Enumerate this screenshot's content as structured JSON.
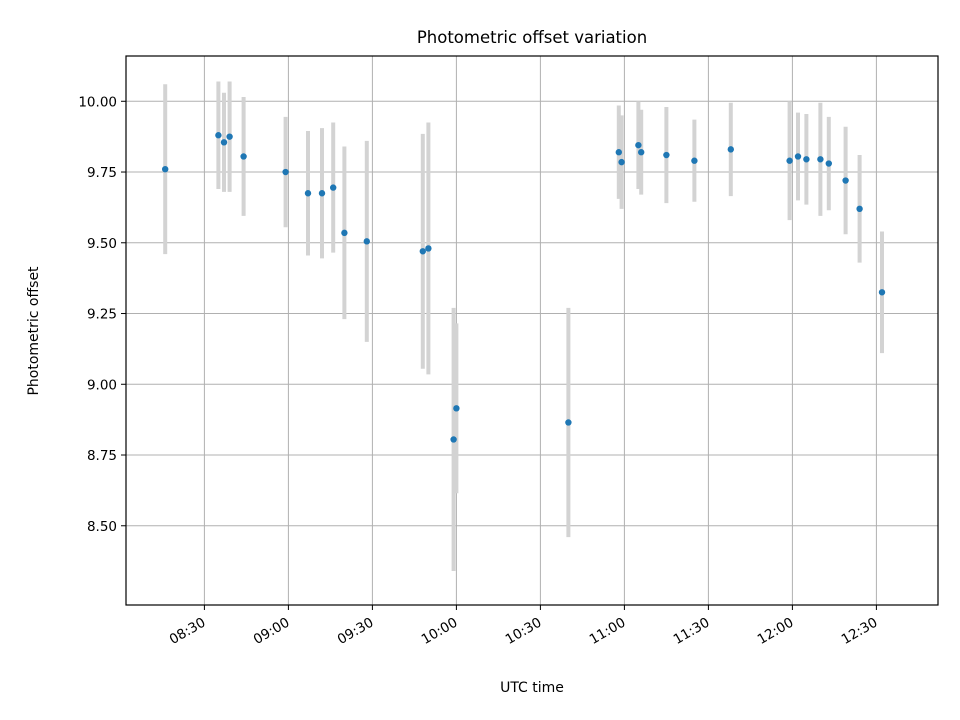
{
  "chart_data": {
    "type": "scatter",
    "title": "Photometric offset variation",
    "xlabel": "UTC time",
    "ylabel": "Photometric offset",
    "xlim": [
      "08:02",
      "12:52"
    ],
    "ylim": [
      8.22,
      10.16
    ],
    "x_ticks": [
      "08:30",
      "09:00",
      "09:30",
      "10:00",
      "10:30",
      "11:00",
      "11:30",
      "12:00",
      "12:30"
    ],
    "y_ticks": [
      8.5,
      8.75,
      9.0,
      9.25,
      9.5,
      9.75,
      10.0
    ],
    "y_tick_labels": [
      "8.50",
      "8.75",
      "9.00",
      "9.25",
      "9.50",
      "9.75",
      "10.00"
    ],
    "grid": true,
    "marker_color": "#1f77b4",
    "errorbar_color": "#d3d3d3",
    "points": [
      {
        "time": "08:16",
        "y": 9.76,
        "err": 0.3
      },
      {
        "time": "08:35",
        "y": 9.88,
        "err": 0.19
      },
      {
        "time": "08:37",
        "y": 9.855,
        "err": 0.175
      },
      {
        "time": "08:39",
        "y": 9.875,
        "err": 0.195
      },
      {
        "time": "08:44",
        "y": 9.805,
        "err": 0.21
      },
      {
        "time": "08:59",
        "y": 9.75,
        "err": 0.195
      },
      {
        "time": "09:07",
        "y": 9.675,
        "err": 0.22
      },
      {
        "time": "09:12",
        "y": 9.675,
        "err": 0.23
      },
      {
        "time": "09:16",
        "y": 9.695,
        "err": 0.23
      },
      {
        "time": "09:20",
        "y": 9.535,
        "err": 0.305
      },
      {
        "time": "09:28",
        "y": 9.505,
        "err": 0.355
      },
      {
        "time": "09:48",
        "y": 9.47,
        "err": 0.415
      },
      {
        "time": "09:50",
        "y": 9.48,
        "err": 0.445
      },
      {
        "time": "09:59",
        "y": 8.805,
        "err": 0.465
      },
      {
        "time": "10:00",
        "y": 8.915,
        "err": 0.3
      },
      {
        "time": "10:40",
        "y": 8.865,
        "err": 0.405
      },
      {
        "time": "10:58",
        "y": 9.82,
        "err": 0.165
      },
      {
        "time": "10:59",
        "y": 9.785,
        "err": 0.165
      },
      {
        "time": "11:05",
        "y": 9.845,
        "err": 0.155
      },
      {
        "time": "11:06",
        "y": 9.82,
        "err": 0.15
      },
      {
        "time": "11:15",
        "y": 9.81,
        "err": 0.17
      },
      {
        "time": "11:25",
        "y": 9.79,
        "err": 0.145
      },
      {
        "time": "11:38",
        "y": 9.83,
        "err": 0.165
      },
      {
        "time": "11:59",
        "y": 9.79,
        "err": 0.21
      },
      {
        "time": "12:02",
        "y": 9.805,
        "err": 0.155
      },
      {
        "time": "12:05",
        "y": 9.795,
        "err": 0.16
      },
      {
        "time": "12:10",
        "y": 9.795,
        "err": 0.2
      },
      {
        "time": "12:13",
        "y": 9.78,
        "err": 0.165
      },
      {
        "time": "12:19",
        "y": 9.72,
        "err": 0.19
      },
      {
        "time": "12:24",
        "y": 9.62,
        "err": 0.19
      },
      {
        "time": "12:32",
        "y": 9.325,
        "err": 0.215
      }
    ]
  }
}
